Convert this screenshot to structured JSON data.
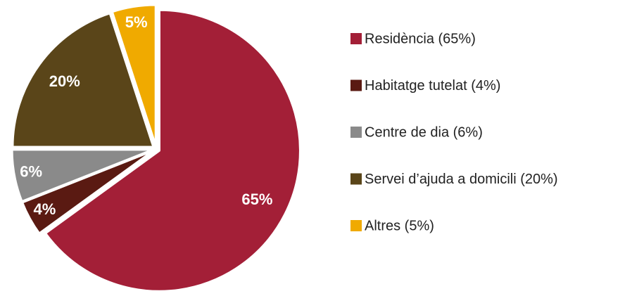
{
  "chart_data": {
    "type": "pie",
    "categories": [
      "Residència (65%)",
      "Habitatge tutelat (4%)",
      "Centre de dia (6%)",
      "Servei d’ajuda a domicili (20%)",
      "Altres (5%)"
    ],
    "values": [
      65,
      4,
      6,
      20,
      5
    ],
    "value_labels": [
      "65%",
      "4%",
      "6%",
      "20%",
      "5%"
    ],
    "colors": [
      "#a31f37",
      "#5a1a12",
      "#8a8a8a",
      "#5a4519",
      "#f0aa00"
    ],
    "legend": "right"
  }
}
